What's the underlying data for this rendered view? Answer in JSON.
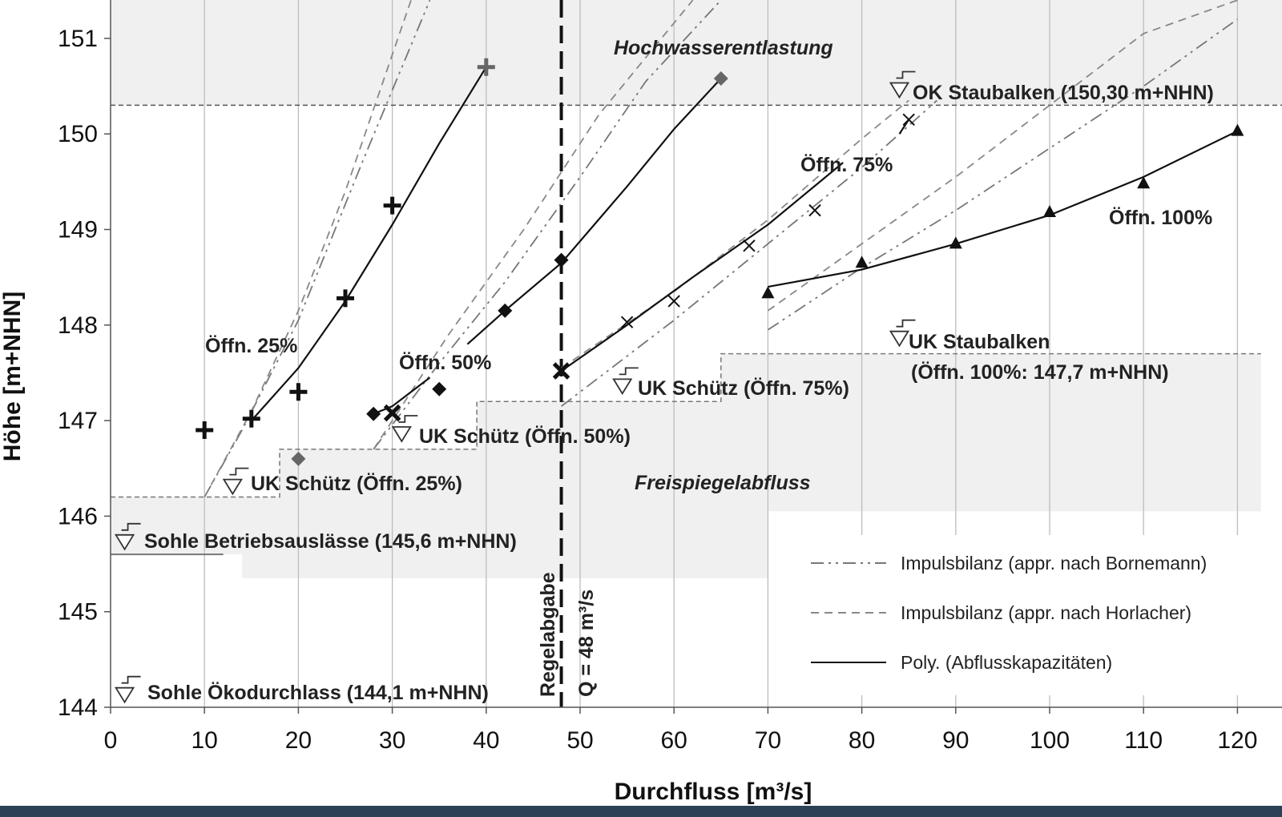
{
  "chart_data": {
    "type": "scatter",
    "xlabel": "Durchfluss  [m³/s]",
    "ylabel": "Höhe [m+NHN]",
    "xlim": [
      0,
      122.5
    ],
    "ylim": [
      144,
      151.4
    ],
    "x_ticks": [
      0,
      10,
      20,
      30,
      40,
      50,
      60,
      70,
      80,
      90,
      100,
      110,
      120
    ],
    "y_ticks": [
      144,
      145,
      146,
      147,
      148,
      149,
      150,
      151
    ],
    "grid": "vertical",
    "legend_position": "bottom-right",
    "legend": [
      {
        "label": "Impulsbilanz (appr. nach Bornemann)",
        "style": "dashdot"
      },
      {
        "label": "Impulsbilanz (appr. nach Horlacher)",
        "style": "dashed"
      },
      {
        "label": "Poly. (Abflusskapazitäten)",
        "style": "solid"
      }
    ],
    "series": [
      {
        "label": "Öffn. 25%",
        "marker": "plus",
        "points": [
          [
            10,
            146.9
          ],
          [
            15,
            147.02
          ],
          [
            20,
            147.3
          ],
          [
            25,
            148.28
          ],
          [
            30,
            149.25
          ],
          [
            40,
            150.7
          ]
        ],
        "poly": [
          [
            15,
            147.0
          ],
          [
            20,
            147.55
          ],
          [
            25,
            148.25
          ],
          [
            30,
            149.05
          ],
          [
            35,
            149.9
          ],
          [
            40,
            150.7
          ]
        ],
        "bornemann": [
          [
            10,
            146.2
          ],
          [
            14,
            146.9
          ],
          [
            20,
            148.05
          ],
          [
            27,
            149.75
          ],
          [
            34,
            151.4
          ]
        ],
        "horlacher": [
          [
            10,
            146.2
          ],
          [
            15,
            147.1
          ],
          [
            20,
            148.15
          ],
          [
            25,
            149.4
          ],
          [
            32,
            151.4
          ]
        ]
      },
      {
        "label": "Öffn. 50%",
        "marker": "diamond",
        "points": [
          [
            20,
            146.6
          ],
          [
            28,
            147.07
          ],
          [
            30,
            147.08
          ],
          [
            35,
            147.33
          ],
          [
            42,
            148.15
          ],
          [
            48,
            148.68
          ],
          [
            65,
            150.58
          ]
        ],
        "poly": [
          [
            38,
            147.8
          ],
          [
            42,
            148.15
          ],
          [
            48,
            148.65
          ],
          [
            55,
            149.45
          ],
          [
            60,
            150.05
          ],
          [
            65,
            150.58
          ]
        ],
        "poly_short": [
          [
            28,
            147.07
          ],
          [
            30,
            147.15
          ],
          [
            34,
            147.45
          ]
        ],
        "bornemann": [
          [
            28,
            146.7
          ],
          [
            35,
            147.6
          ],
          [
            42,
            148.45
          ],
          [
            50,
            149.55
          ],
          [
            57,
            150.55
          ],
          [
            65,
            151.4
          ]
        ],
        "horlacher": [
          [
            28,
            146.7
          ],
          [
            36,
            147.9
          ],
          [
            44,
            149.0
          ],
          [
            52,
            150.2
          ],
          [
            62,
            151.4
          ]
        ]
      },
      {
        "label": "Öffn. 75%",
        "marker": "x",
        "points": [
          [
            48,
            147.52
          ],
          [
            55,
            148.03
          ],
          [
            60,
            148.25
          ],
          [
            68,
            148.83
          ],
          [
            75,
            149.2
          ],
          [
            85,
            150.15
          ]
        ],
        "poly": [
          [
            48,
            147.52
          ],
          [
            55,
            148.0
          ],
          [
            62,
            148.5
          ],
          [
            70,
            149.05
          ],
          [
            78,
            149.7
          ]
        ],
        "poly_short": [
          [
            84,
            150.0
          ],
          [
            85,
            150.15
          ]
        ],
        "bornemann": [
          [
            48,
            147.15
          ],
          [
            60,
            148.05
          ],
          [
            70,
            148.85
          ],
          [
            80,
            149.65
          ],
          [
            88,
            150.35
          ]
        ],
        "horlacher": [
          [
            48,
            147.55
          ],
          [
            60,
            148.35
          ],
          [
            70,
            149.1
          ],
          [
            80,
            149.95
          ],
          [
            85,
            150.35
          ]
        ]
      },
      {
        "label": "Öffn. 100%",
        "marker": "triangle",
        "points": [
          [
            70,
            148.33
          ],
          [
            80,
            148.65
          ],
          [
            90,
            148.85
          ],
          [
            100,
            149.18
          ],
          [
            110,
            149.48
          ],
          [
            120,
            150.03
          ]
        ],
        "poly": [
          [
            70,
            148.4
          ],
          [
            80,
            148.58
          ],
          [
            90,
            148.85
          ],
          [
            100,
            149.15
          ],
          [
            110,
            149.55
          ],
          [
            120,
            150.03
          ]
        ],
        "bornemann": [
          [
            70,
            147.95
          ],
          [
            80,
            148.6
          ],
          [
            90,
            149.2
          ],
          [
            100,
            149.85
          ],
          [
            110,
            150.5
          ],
          [
            120,
            151.2
          ]
        ],
        "horlacher": [
          [
            70,
            148.15
          ],
          [
            80,
            148.85
          ],
          [
            90,
            149.55
          ],
          [
            100,
            150.3
          ],
          [
            110,
            151.05
          ],
          [
            120,
            151.4
          ]
        ]
      }
    ],
    "stepped_boundary": [
      [
        0,
        146.2
      ],
      [
        18,
        146.2
      ],
      [
        18,
        146.7
      ],
      [
        39,
        146.7
      ],
      [
        39,
        147.2
      ],
      [
        65,
        147.2
      ],
      [
        65,
        147.7
      ],
      [
        122.5,
        147.7
      ]
    ],
    "ok_staubalken_level": 150.3,
    "regelabgabe_x": 48,
    "annotations": {
      "oeffn25": "Öffn. 25%",
      "oeffn50": "Öffn. 50%",
      "oeffn75": "Öffn. 75%",
      "oeffn100": "Öffn. 100%",
      "hochwasser": "Hochwasserentlastung",
      "freispiegel": "Freispiegelabfluss",
      "ok_staubalken": "OK Staubalken (150,30 m+NHN)",
      "uk_staubalken_1": "UK Staubalken",
      "uk_staubalken_2": "(Öffn. 100%: 147,7 m+NHN)",
      "uk_schuetz_75": "UK Schütz (Öffn. 75%)",
      "uk_schuetz_50": "UK Schütz (Öffn. 50%)",
      "uk_schuetz_25": "UK Schütz (Öffn. 25%)",
      "sohle_betrieb": "Sohle Betriebsauslässe (145,6 m+NHN)",
      "sohle_oeko": "Sohle Ökodurchlass (144,1 m+NHN)",
      "regel_1": "Regelabgabe",
      "regel_2": "Q = 48 m³/s"
    },
    "colors": {
      "background_shade": "#f0f0f0",
      "grid": "#bdbdbd",
      "line": "#111111",
      "dashed": "#888888",
      "dashdot": "#777777",
      "diamond_grey": "#666666",
      "bottom_strip": "#2d4156"
    }
  }
}
